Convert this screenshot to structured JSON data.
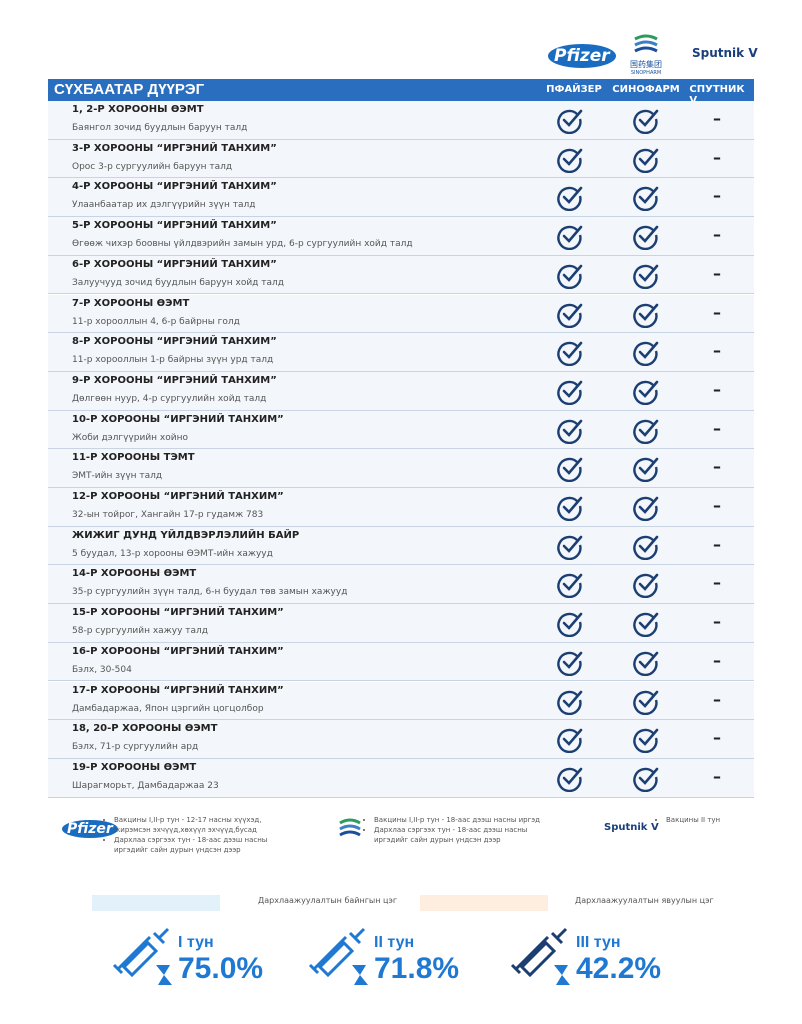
{
  "logos": {
    "pfizer": "Pfizer",
    "sinopharm_cn": "国药集团",
    "sinopharm": "SINOPHARM",
    "sputnik": "Sputnik V"
  },
  "table": {
    "title": "СҮХБААТАР ДҮҮРЭГ",
    "columns": [
      "ПФАЙЗЕР",
      "СИНОФАРМ",
      "СПУТНИК V"
    ],
    "rows": [
      {
        "name": "1, 2-Р ХОРООНЫ ӨЭМТ",
        "address": "Баянгол зочид буудлын баруун талд",
        "sputnik": "–"
      },
      {
        "name": "3-Р ХОРООНЫ “ИРГЭНИЙ ТАНХИМ”",
        "address": "Орос 3-р сургуулийн баруун талд",
        "sputnik": "–"
      },
      {
        "name": "4-Р ХОРООНЫ “ИРГЭНИЙ ТАНХИМ”",
        "address": "Улаанбаатар их дэлгүүрийн зүүн талд",
        "sputnik": "–"
      },
      {
        "name": "5-Р ХОРООНЫ “ИРГЭНИЙ ТАНХИМ”",
        "address": "Өгөөж чихэр боовны үйлдвэрийн замын урд, 6-р сургуулийн хойд талд",
        "sputnik": "–"
      },
      {
        "name": "6-Р ХОРООНЫ “ИРГЭНИЙ ТАНХИМ”",
        "address": "Залуучууд зочид буудлын баруун хойд талд",
        "sputnik": "–"
      },
      {
        "name": "7-Р ХОРООНЫ ӨЭМТ",
        "address": "11-р хорооллын 4, 6-р байрны голд",
        "sputnik": "–"
      },
      {
        "name": "8-Р ХОРООНЫ “ИРГЭНИЙ ТАНХИМ”",
        "address": "11-р хорооллын 1-р байрны зүүн урд талд",
        "sputnik": "–"
      },
      {
        "name": "9-Р ХОРООНЫ “ИРГЭНИЙ ТАНХИМ”",
        "address": "Дөлгөөн нуур, 4-р сургуулийн хойд талд",
        "sputnik": "–"
      },
      {
        "name": "10-Р ХОРООНЫ “ИРГЭНИЙ ТАНХИМ”",
        "address": "Жоби дэлгүүрийн хойно",
        "sputnik": "–"
      },
      {
        "name": "11-Р ХОРООНЫ ТЭМТ",
        "address": "ЭМТ-ийн зүүн талд",
        "sputnik": "–"
      },
      {
        "name": "12-Р ХОРООНЫ “ИРГЭНИЙ ТАНХИМ”",
        "address": "32-ын тойрог, Хангайн 17-р гудамж 783",
        "sputnik": "–"
      },
      {
        "name": "ЖИЖИГ ДУНД ҮЙЛДВЭРЛЭЛИЙН БАЙР",
        "address": "5 буудал, 13-р хорооны ӨЭМТ-ийн хажууд",
        "sputnik": "–"
      },
      {
        "name": "14-Р ХОРООНЫ ӨЭМТ",
        "address": "35-р сургуулийн зүүн талд, 6-н буудал төв замын хажууд",
        "sputnik": "–"
      },
      {
        "name": "15-Р ХОРООНЫ “ИРГЭНИЙ ТАНХИМ”",
        "address": "58-р сургуулийн хажуу талд",
        "sputnik": "–"
      },
      {
        "name": "16-Р ХОРООНЫ “ИРГЭНИЙ ТАНХИМ”",
        "address": "Бэлх, 30-504",
        "sputnik": "–"
      },
      {
        "name": "17-Р ХОРООНЫ “ИРГЭНИЙ ТАНХИМ”",
        "address": "Дамбадаржаа, Япон цэргийн цогцолбор",
        "sputnik": "–"
      },
      {
        "name": "18, 20-Р ХОРООНЫ ӨЭМТ",
        "address": "Бэлх, 71-р сургуулийн ард",
        "sputnik": "–"
      },
      {
        "name": "19-Р ХОРООНЫ ӨЭМТ",
        "address": "Шарагморьт, Дамбадаржаа 23",
        "sputnik": "–"
      }
    ]
  },
  "legend": {
    "pfizer": [
      "Вакцины I,II-р тун - 12-17 насны хүүхэд, жирэмсэн эхчүүд,хөхүүл эхчүүд,бусад",
      "Дархлаа сэргээх тун - 18-аас дээш насны иргэдийг сайн дурын үндсэн дээр"
    ],
    "sinopharm": [
      "Вакцины I,II-р тун - 18-аас дээш насны иргэд",
      "Дархлаа сэргээх тун - 18-аас дээш насны иргэдийг сайн дурын үндсэн дээр"
    ],
    "sputnik": [
      "Вакцины II тун"
    ]
  },
  "points": {
    "permanent": "Дархлаажуулалтын байнгын цэг",
    "mobile": "Дархлаажуулалтын явуулын цэг"
  },
  "doses": [
    {
      "label": "I тун",
      "value": "75.0%"
    },
    {
      "label": "II тун",
      "value": "71.8%"
    },
    {
      "label": "III тун",
      "value": "42.2%"
    }
  ]
}
